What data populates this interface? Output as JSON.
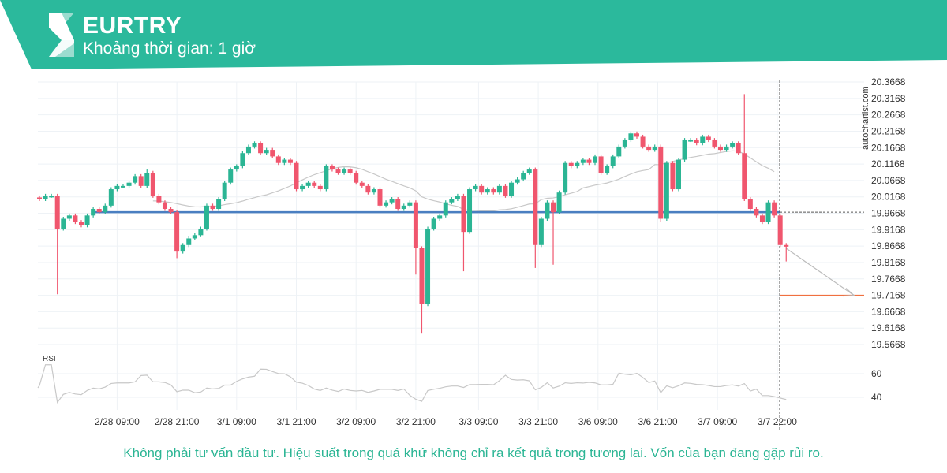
{
  "header": {
    "symbol": "EURTRY",
    "interval": "Khoảng thời gian: 1 giờ",
    "brand_color": "#2bb99c"
  },
  "watermark": "autochartist.com",
  "footer": "Không phải tư vấn đầu tư. Hiệu suất trong quá khứ không chỉ ra kết quả trong tương lai. Vốn của bạn đang gặp rủi ro.",
  "chart_data": {
    "type": "candlestick",
    "symbol": "EURTRY",
    "colors": {
      "up": "#2bb594",
      "down": "#f0566e",
      "support": "#4a7fc1",
      "target": "#f07040",
      "ma": "#c8c8c8"
    },
    "y_ticks": [
      "20.3668",
      "20.3168",
      "20.2668",
      "20.2168",
      "20.1668",
      "20.1168",
      "20.0668",
      "20.0168",
      "19.9668",
      "19.9168",
      "19.8668",
      "19.8168",
      "19.7668",
      "19.7168",
      "19.6668",
      "19.6168",
      "19.5668"
    ],
    "ylim": [
      19.5668,
      20.3668
    ],
    "x_labels": [
      {
        "text": "2/28 09:00",
        "index": 13
      },
      {
        "text": "2/28 21:00",
        "index": 23
      },
      {
        "text": "3/1 09:00",
        "index": 33
      },
      {
        "text": "3/1 21:00",
        "index": 43
      },
      {
        "text": "3/2 09:00",
        "index": 53
      },
      {
        "text": "3/2 21:00",
        "index": 63
      },
      {
        "text": "3/3 09:00",
        "index": 73.5
      },
      {
        "text": "3/3 21:00",
        "index": 83.5
      },
      {
        "text": "3/6 09:00",
        "index": 93.5
      },
      {
        "text": "3/6 21:00",
        "index": 103.5
      },
      {
        "text": "3/7 09:00",
        "index": 113.5
      },
      {
        "text": "3/7 22:00",
        "index": 123.5,
        "highlight": true
      }
    ],
    "support_level": 19.97,
    "target_level": 19.7168,
    "rsi": {
      "label": "RSI",
      "ticks": [
        "60",
        "40"
      ],
      "period": 14
    },
    "ma_period": 20,
    "closes": [
      20.01,
      20.02,
      20.02,
      19.92,
      19.95,
      19.96,
      19.94,
      19.93,
      19.96,
      19.98,
      19.97,
      19.99,
      20.04,
      20.05,
      20.05,
      20.06,
      20.08,
      20.05,
      20.09,
      20.02,
      20.0,
      19.98,
      19.97,
      19.85,
      19.87,
      19.89,
      19.9,
      19.92,
      19.99,
      19.98,
      20.01,
      20.06,
      20.1,
      20.11,
      20.15,
      20.17,
      20.18,
      20.15,
      20.16,
      20.14,
      20.12,
      20.13,
      20.12,
      20.04,
      20.05,
      20.06,
      20.05,
      20.04,
      20.11,
      20.1,
      20.09,
      20.1,
      20.09,
      20.06,
      20.05,
      20.03,
      20.04,
      19.99,
      20.0,
      20.01,
      19.98,
      19.99,
      20.0,
      19.86,
      19.69,
      19.92,
      19.95,
      19.96,
      20.0,
      20.01,
      20.02,
      19.91,
      20.04,
      20.05,
      20.03,
      20.04,
      20.03,
      20.05,
      20.02,
      20.06,
      20.07,
      20.09,
      20.1,
      19.87,
      19.95,
      20.0,
      19.97,
      20.03,
      20.12,
      20.11,
      20.12,
      20.13,
      20.12,
      20.14,
      20.09,
      20.11,
      20.14,
      20.17,
      20.19,
      20.21,
      20.2,
      20.17,
      20.16,
      20.17,
      19.95,
      20.12,
      20.04,
      20.13,
      20.19,
      20.19,
      20.18,
      20.2,
      20.19,
      20.17,
      20.16,
      20.17,
      20.18,
      20.15,
      20.01,
      19.98,
      19.96,
      19.94,
      20.0,
      19.96,
      19.87,
      19.865
    ],
    "wick_extremes": [
      {
        "index": 3,
        "low": 19.72
      },
      {
        "index": 18,
        "high": 20.1
      },
      {
        "index": 23,
        "low": 19.83
      },
      {
        "index": 63,
        "low": 19.78
      },
      {
        "index": 64,
        "low": 19.6
      },
      {
        "index": 71,
        "low": 19.79
      },
      {
        "index": 83,
        "low": 19.8
      },
      {
        "index": 86,
        "low": 19.81
      },
      {
        "index": 104,
        "low": 19.94
      },
      {
        "index": 118,
        "high": 20.33
      },
      {
        "index": 125,
        "low": 19.82
      }
    ]
  }
}
